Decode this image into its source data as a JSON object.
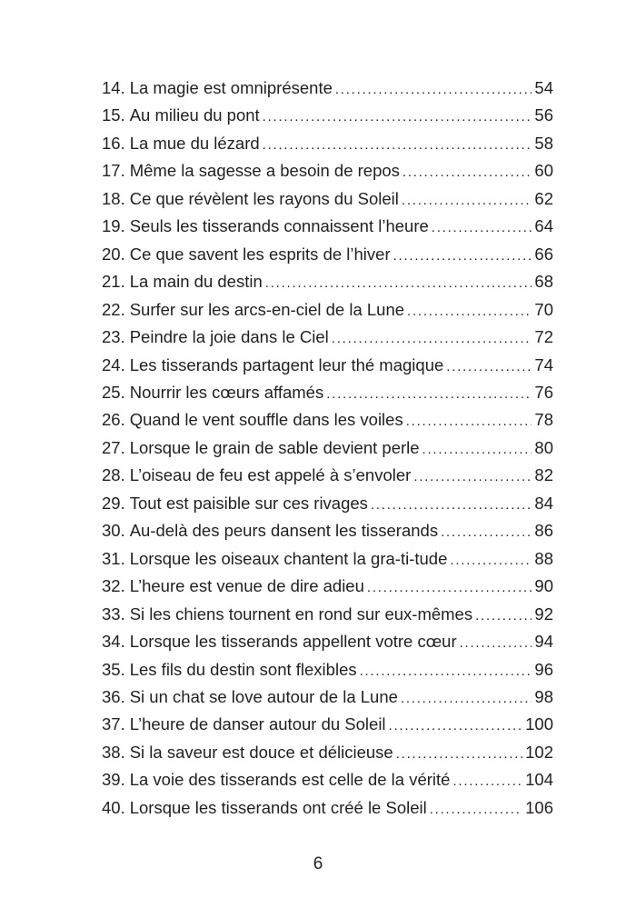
{
  "toc": {
    "entries": [
      {
        "number": "14.",
        "title": "La magie est omniprésente",
        "page": "54"
      },
      {
        "number": "15.",
        "title": "Au milieu du pont",
        "page": "56"
      },
      {
        "number": "16.",
        "title": "La mue du lézard",
        "page": "58"
      },
      {
        "number": "17.",
        "title": "Même la sagesse a besoin de repos",
        "page": "60"
      },
      {
        "number": "18.",
        "title": "Ce que révèlent les rayons du Soleil",
        "page": "62"
      },
      {
        "number": "19.",
        "title": "Seuls les tisserands connaissent l’heure",
        "page": "64"
      },
      {
        "number": "20.",
        "title": "Ce que savent les esprits de l’hiver",
        "page": "66"
      },
      {
        "number": "21.",
        "title": "La main du destin",
        "page": "68"
      },
      {
        "number": "22.",
        "title": "Surfer sur les arcs-en-ciel de la Lune",
        "page": "70"
      },
      {
        "number": "23.",
        "title": "Peindre la joie dans le Ciel",
        "page": "72"
      },
      {
        "number": "24.",
        "title": "Les tisserands partagent leur thé magique",
        "page": "74"
      },
      {
        "number": "25.",
        "title": "Nourrir les cœurs affamés",
        "page": "76"
      },
      {
        "number": "26.",
        "title": "Quand le vent souffle dans les voiles",
        "page": "78"
      },
      {
        "number": "27.",
        "title": "Lorsque le grain de sable devient perle",
        "page": "80"
      },
      {
        "number": "28.",
        "title": "L’oiseau de feu est appelé à s’envoler",
        "page": "82"
      },
      {
        "number": "29.",
        "title": "Tout est paisible sur ces rivages",
        "page": "84"
      },
      {
        "number": "30.",
        "title": "Au-delà des peurs dansent les tisserands",
        "page": "86"
      },
      {
        "number": "31.",
        "title": "Lorsque les oiseaux chantent la gra-ti-tude",
        "page": "88"
      },
      {
        "number": "32.",
        "title": "L’heure est venue de dire adieu",
        "page": "90"
      },
      {
        "number": "33.",
        "title": "Si les chiens tournent en rond sur eux-mêmes",
        "page": "92"
      },
      {
        "number": "34.",
        "title": "Lorsque les tisserands appellent votre cœur",
        "page": "94"
      },
      {
        "number": "35.",
        "title": "Les fils du destin sont flexibles",
        "page": "96"
      },
      {
        "number": "36.",
        "title": "Si un chat se love autour de la Lune",
        "page": "98"
      },
      {
        "number": "37.",
        "title": "L’heure de danser autour du Soleil",
        "page": "100"
      },
      {
        "number": "38.",
        "title": "Si la saveur est douce et délicieuse",
        "page": "102"
      },
      {
        "number": "39.",
        "title": "La voie des tisserands est celle de la vérité",
        "page": "104"
      },
      {
        "number": "40.",
        "title": "Lorsque les tisserands ont créé le Soleil",
        "page": "106"
      }
    ]
  },
  "folio": "6"
}
